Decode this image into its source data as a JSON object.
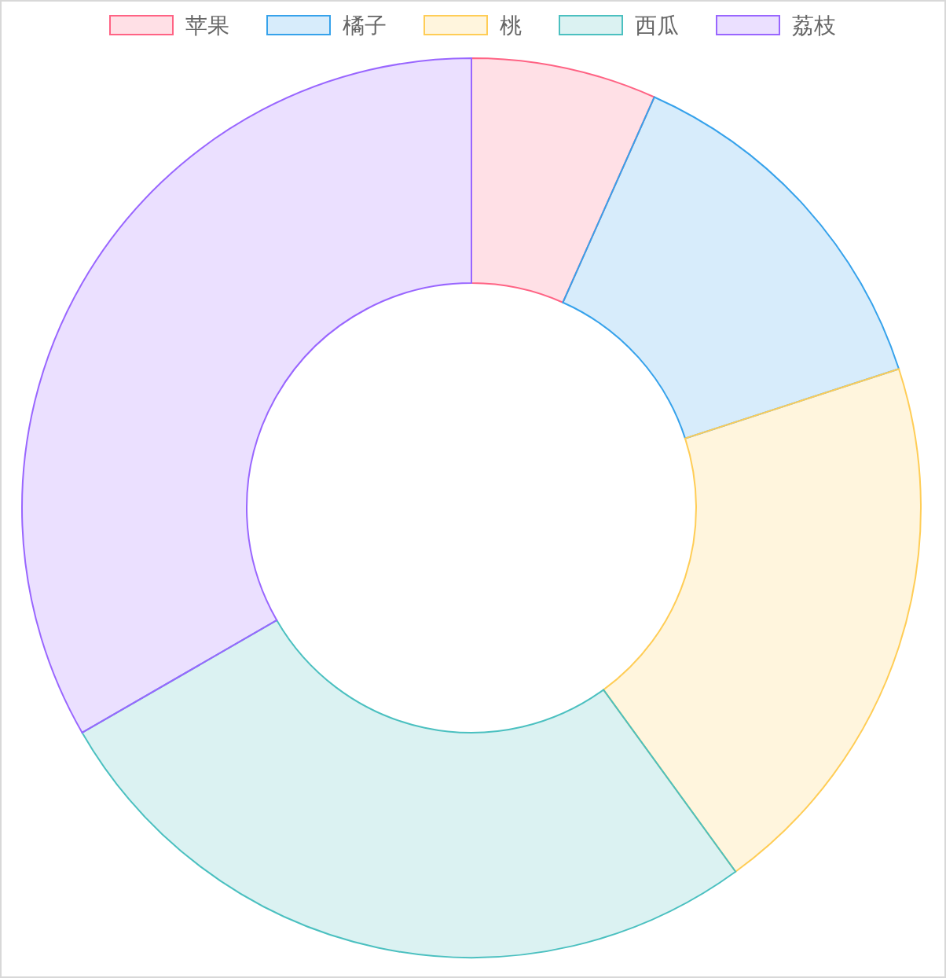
{
  "chart_data": {
    "type": "donut",
    "categories": [
      "苹果",
      "橘子",
      "桃",
      "西瓜",
      "荔枝"
    ],
    "values": [
      6.67,
      13.33,
      20,
      26.67,
      33.33
    ],
    "colors": [
      "#ff6384",
      "#36a2eb",
      "#ffcd56",
      "#4bc0c0",
      "#9966ff"
    ],
    "legend": "top"
  }
}
